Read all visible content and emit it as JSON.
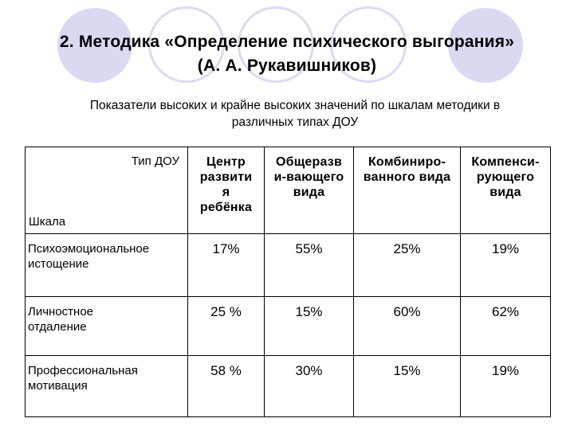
{
  "title": {
    "line1": "2. Методика «Определение психического выгорания»",
    "line2": "(А. А. Рукавишников)"
  },
  "subtitle": {
    "line1": "Показатели высоких и крайне высоких значений по шкалам методики в",
    "line2": "различных типах ДОУ"
  },
  "table": {
    "corner_top": "Тип ДОУ",
    "corner_bottom": "Шкала",
    "columns": [
      {
        "lines": [
          "Центр",
          "развити",
          "я",
          "ребёнка"
        ]
      },
      {
        "lines": [
          "Общеразв",
          "и-вающего",
          "вида"
        ]
      },
      {
        "lines": [
          "Комбиниро-",
          "ванного вида"
        ]
      },
      {
        "lines": [
          "Компенси-",
          "рующего",
          "вида"
        ]
      }
    ],
    "rows": [
      {
        "label": [
          "Психоэмоциональное",
          "истощение"
        ],
        "values": [
          "17%",
          "55%",
          "25%",
          "19%"
        ]
      },
      {
        "label": [
          "Личностное",
          "отдаление"
        ],
        "values": [
          "25 %",
          "15%",
          "60%",
          "62%"
        ]
      },
      {
        "label": [
          "Профессиональная",
          "мотивация"
        ],
        "values": [
          "58 %",
          "30%",
          "15%",
          "19%"
        ]
      }
    ]
  }
}
